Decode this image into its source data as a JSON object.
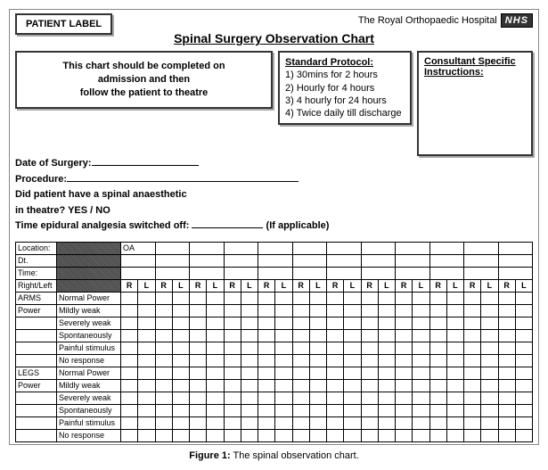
{
  "header": {
    "patient_label_box": "PATIENT LABEL",
    "hospital_name": "The Royal Orthopaedic Hospital",
    "logo_text": "NHS",
    "title": "Spinal Surgery Observation Chart"
  },
  "instruction": {
    "line1": "This chart should be completed on",
    "line2": "admission and then",
    "line3": "follow the patient to theatre"
  },
  "protocol": {
    "heading": "Standard Protocol:",
    "items": [
      "1) 30mins for 2 hours",
      "2) Hourly for 4 hours",
      "3) 4 hourly for 24 hours",
      "4) Twice daily till discharge"
    ]
  },
  "consultant": {
    "heading": "Consultant Specific Instructions:"
  },
  "fields": {
    "date_label": "Date of Surgery:",
    "procedure_label": "Procedure:",
    "anaesthetic_q_l1": "Did patient have a spinal anaesthetic",
    "anaesthetic_q_l2": "in theatre? YES / NO",
    "epidural_l1": "Time epidural analgesia switched off:",
    "epidural_l2": "(If applicable)"
  },
  "table": {
    "row_headers": [
      "Location:",
      "Dt.",
      "Time:",
      "Right/Left"
    ],
    "oa_label": "OA",
    "rl_pair": [
      "R",
      "L"
    ],
    "section_arms": "ARMS",
    "section_legs": "LEGS",
    "section_power": "Power",
    "power_rows": [
      "Normal Power",
      "Mildly weak",
      "Severely weak",
      "Spontaneously",
      "Painful stimulus",
      "No response"
    ],
    "columns": 12
  },
  "caption": {
    "bold": "Figure 1:",
    "rest": " The spinal observation chart."
  }
}
